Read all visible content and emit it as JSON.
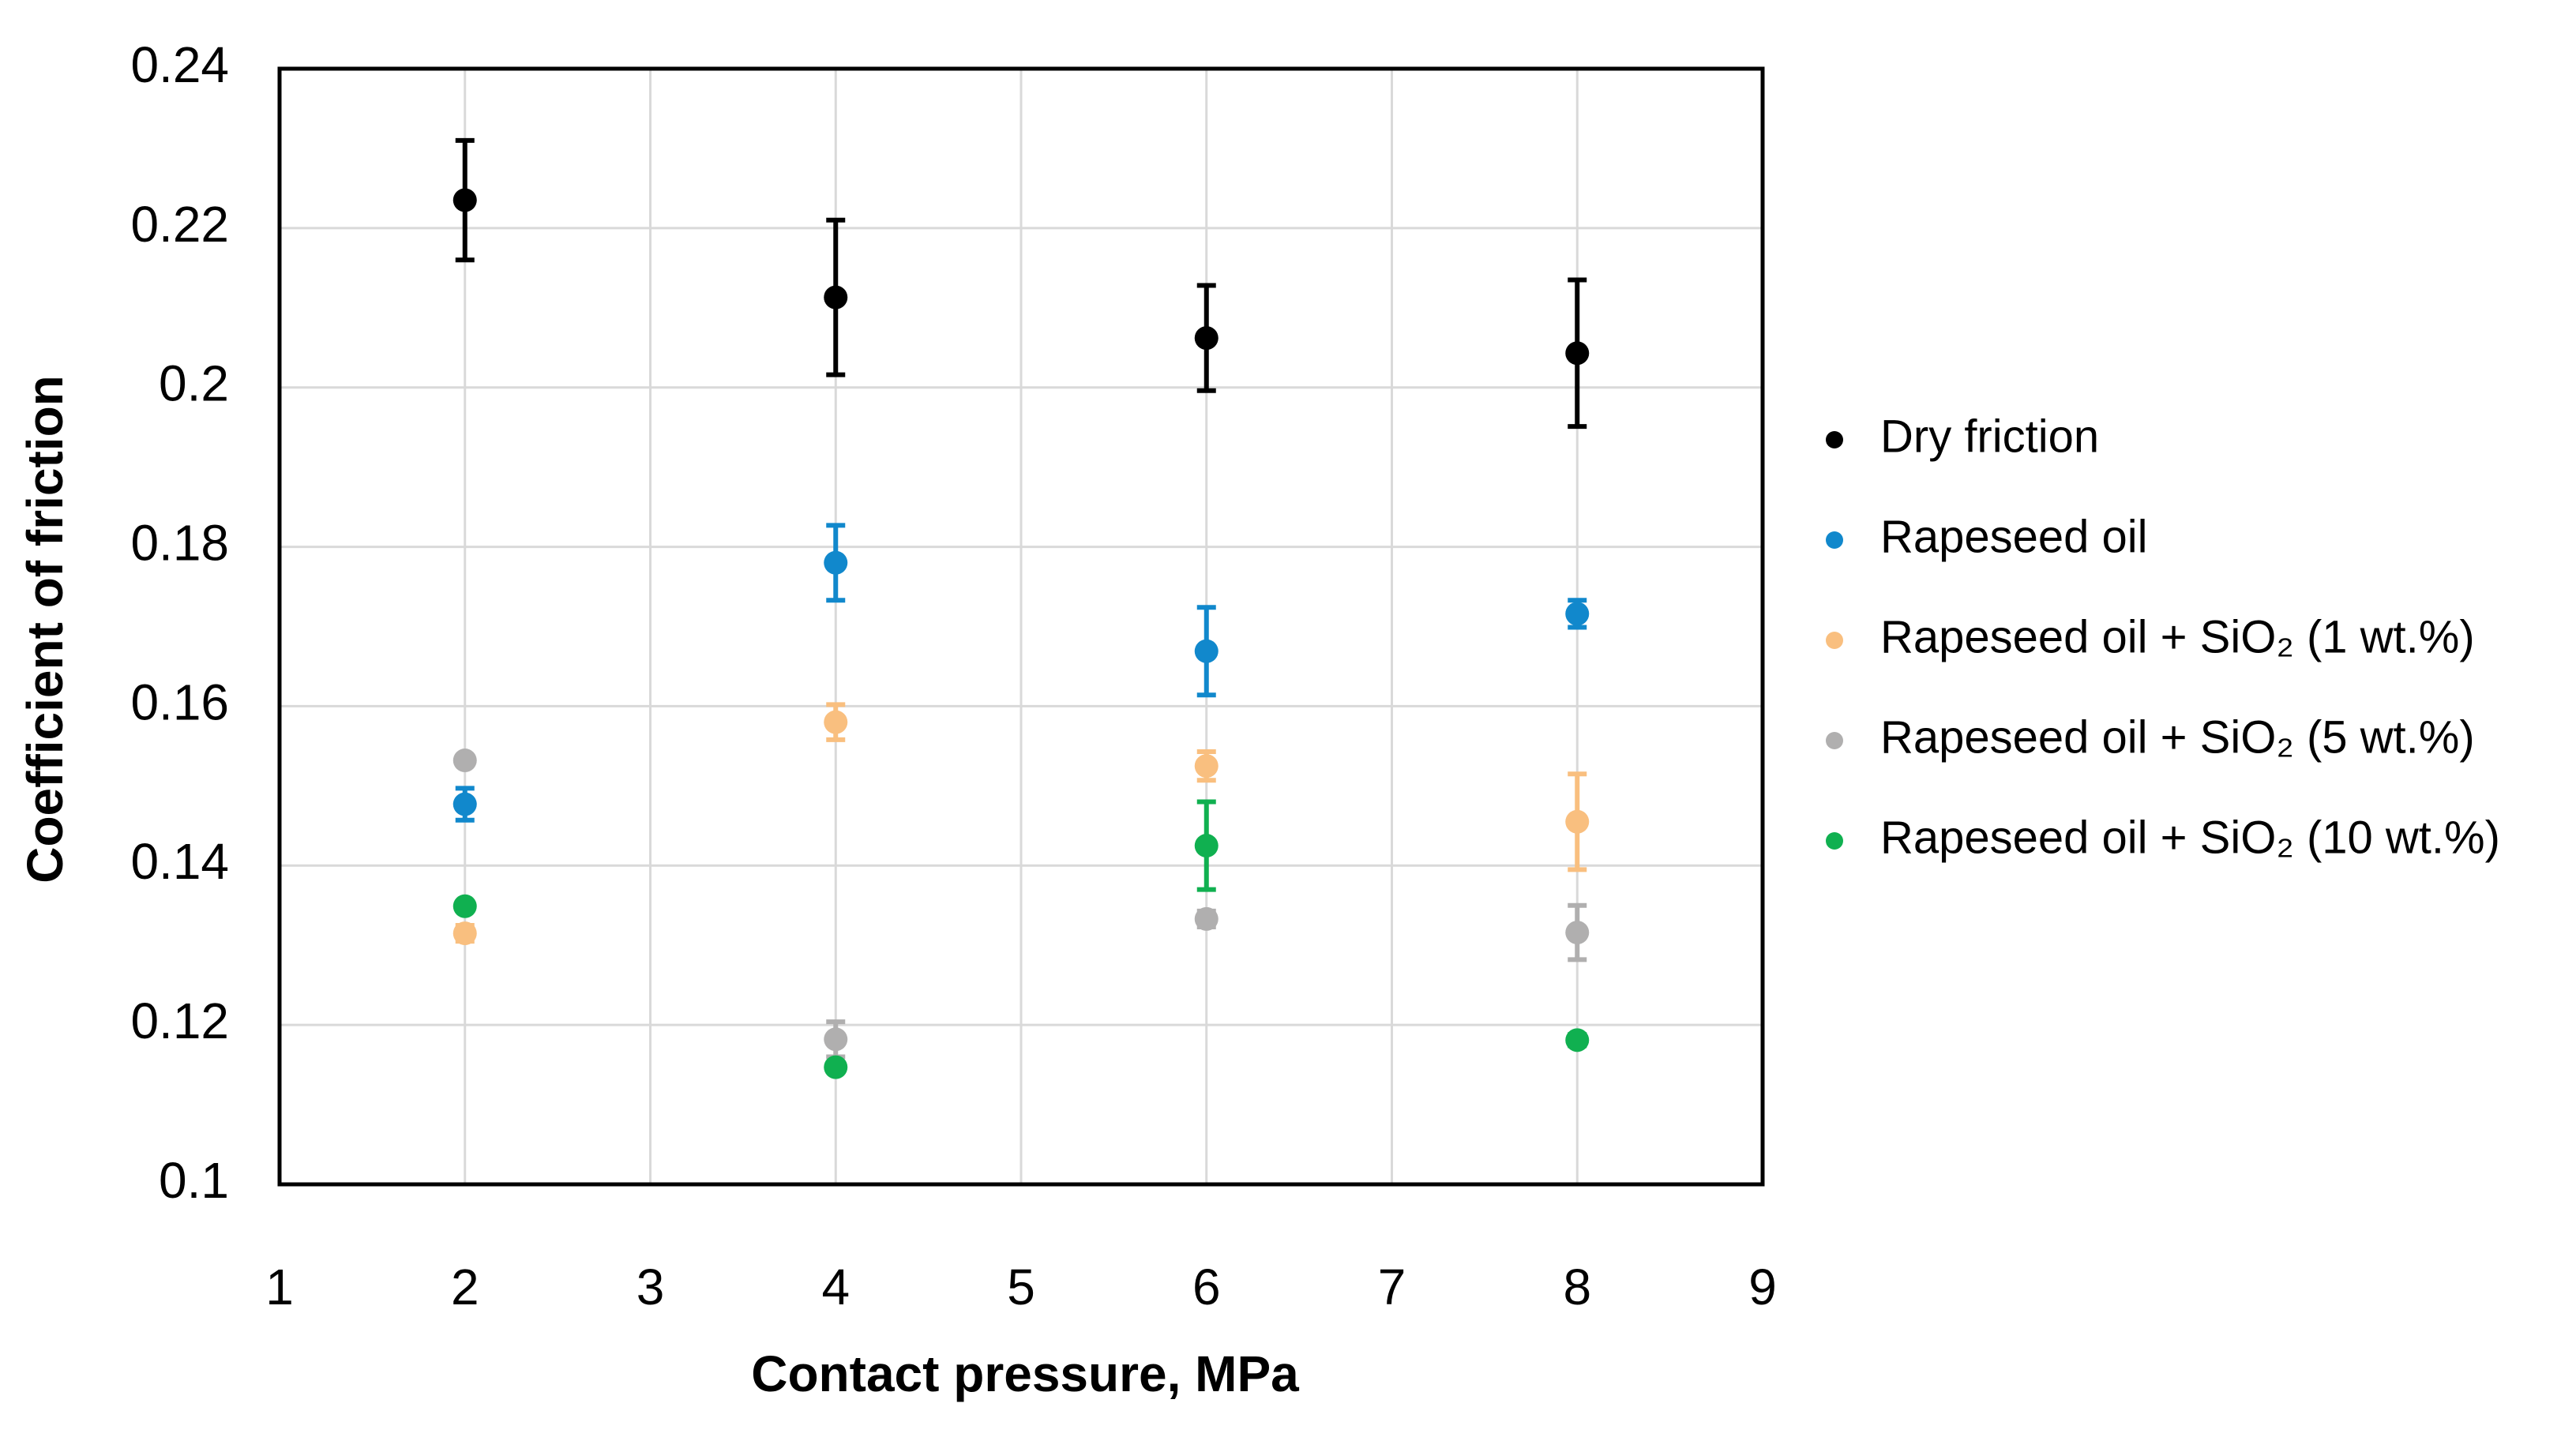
{
  "chart_data": {
    "type": "scatter",
    "x_label": "Contact pressure, MPa",
    "y_label": "Coefficient of friction",
    "x": [
      2,
      4,
      6,
      8
    ],
    "xlim": [
      1,
      9
    ],
    "xticks": [
      1,
      2,
      3,
      4,
      5,
      6,
      7,
      8,
      9
    ],
    "ylim": [
      0.1,
      0.24
    ],
    "yticks": [
      0.1,
      0.12,
      0.14,
      0.16,
      0.18,
      0.2,
      0.22,
      0.24
    ],
    "grid": true,
    "legend": "right",
    "series": [
      {
        "name": "Dry friction",
        "color": "#000000",
        "values": [
          0.2235,
          0.2113,
          0.2062,
          0.2043
        ],
        "errors": [
          0.0075,
          0.0097,
          0.0066,
          0.0092
        ]
      },
      {
        "name": "Rapeseed oil",
        "color": "#1188cc",
        "values": [
          0.1477,
          0.178,
          0.1669,
          0.1716
        ],
        "errors": [
          0.002,
          0.0047,
          0.0055,
          0.0017
        ]
      },
      {
        "name": "Rapeseed oil + SiO₂ (1 wt.%)",
        "color": "#f9bf7f",
        "values": [
          0.1315,
          0.158,
          0.1525,
          0.1455
        ],
        "errors": [
          0.001,
          0.0022,
          0.0018,
          0.006
        ]
      },
      {
        "name": "Rapeseed oil + SiO₂ (5 wt.%)",
        "color": "#b0afaf",
        "values": [
          0.1532,
          0.1182,
          0.1333,
          0.1316
        ],
        "errors": [
          0.0005,
          0.0022,
          0.001,
          0.0034
        ]
      },
      {
        "name": "Rapeseed oil + SiO₂ (10 wt.%)",
        "color": "#10b050",
        "values": [
          0.1349,
          0.1147,
          0.1425,
          0.1181
        ],
        "errors": [
          0.0005,
          0.0005,
          0.0055,
          0.0007
        ]
      }
    ]
  }
}
